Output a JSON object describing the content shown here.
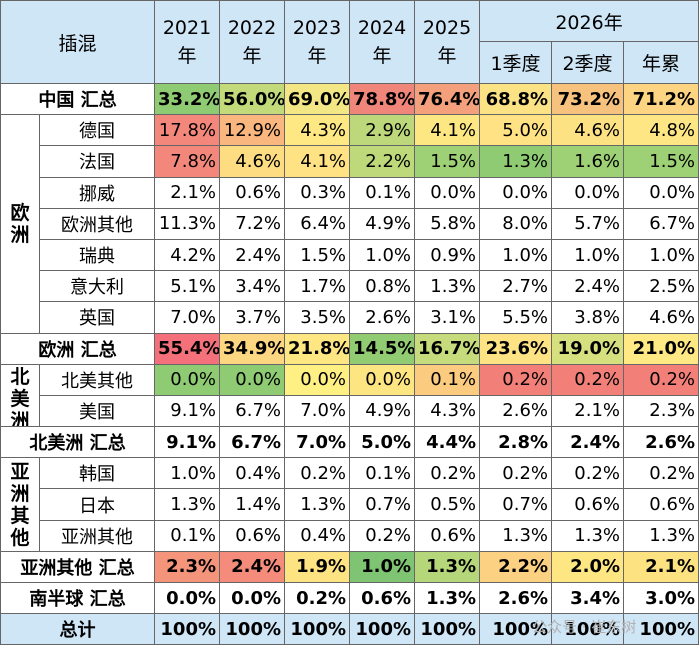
{
  "header": {
    "corner": "插混",
    "years": [
      "2021\n年",
      "2022\n年",
      "2023\n年",
      "2024\n年",
      "2025\n年"
    ],
    "group": "2026年",
    "sub": [
      "1季度",
      "2季度",
      "年累"
    ]
  },
  "rows": [
    {
      "kind": "sum",
      "label": "中国 汇总",
      "values": [
        "33.2%",
        "56.0%",
        "69.0%",
        "78.8%",
        "76.4%",
        "68.8%",
        "73.2%",
        "71.2%"
      ],
      "colors": [
        "#8fcb72",
        "#c2da7a",
        "#f3e785",
        "#f0857a",
        "#f4a07c",
        "#fbe285",
        "#f7c27e",
        "#fdd481"
      ]
    },
    {
      "kind": "item",
      "region": "欧洲",
      "regionSpan": 7,
      "label": "德国",
      "values": [
        "17.8%",
        "12.9%",
        "4.3%",
        "2.9%",
        "4.1%",
        "5.0%",
        "4.6%",
        "4.8%"
      ],
      "colors": [
        "#f4877b",
        "#f9b67e",
        "#fde883",
        "#bcd87a",
        "#fce783",
        "#fee284",
        "#fde283",
        "#fde683"
      ]
    },
    {
      "kind": "item",
      "label": "法国",
      "values": [
        "7.8%",
        "4.6%",
        "4.1%",
        "2.2%",
        "1.5%",
        "1.3%",
        "1.6%",
        "1.5%"
      ],
      "colors": [
        "#f4877b",
        "#fedc82",
        "#fee283",
        "#bed97a",
        "#9ed075",
        "#8ecb72",
        "#9ed075",
        "#9ed075"
      ]
    },
    {
      "kind": "item",
      "label": "挪威",
      "values": [
        "2.1%",
        "0.6%",
        "0.3%",
        "0.1%",
        "0.0%",
        "0.0%",
        "0.0%",
        "0.0%"
      ],
      "colors": []
    },
    {
      "kind": "item",
      "label": "欧洲其他",
      "values": [
        "11.3%",
        "7.2%",
        "6.4%",
        "4.9%",
        "5.8%",
        "8.0%",
        "5.7%",
        "6.7%"
      ],
      "colors": []
    },
    {
      "kind": "item",
      "label": "瑞典",
      "values": [
        "4.2%",
        "2.4%",
        "1.5%",
        "1.0%",
        "0.9%",
        "1.0%",
        "1.0%",
        "1.0%"
      ],
      "colors": []
    },
    {
      "kind": "item",
      "label": "意大利",
      "values": [
        "5.1%",
        "3.4%",
        "1.7%",
        "0.8%",
        "1.3%",
        "2.7%",
        "2.4%",
        "2.5%"
      ],
      "colors": []
    },
    {
      "kind": "item",
      "label": "英国",
      "values": [
        "7.0%",
        "3.7%",
        "3.5%",
        "2.6%",
        "3.1%",
        "5.5%",
        "3.8%",
        "4.6%"
      ],
      "colors": []
    },
    {
      "kind": "sum",
      "label": "欧洲 汇总",
      "values": [
        "55.4%",
        "34.9%",
        "21.8%",
        "14.5%",
        "16.7%",
        "23.6%",
        "19.0%",
        "21.0%"
      ],
      "colors": [
        "#f4707a",
        "#fdd681",
        "#fee683",
        "#91cc73",
        "#c6db7b",
        "#fde383",
        "#d7e07e",
        "#ffe984"
      ]
    },
    {
      "kind": "item",
      "region": "北美洲",
      "regionSpan": 2,
      "label": "北美其他",
      "values": [
        "0.0%",
        "0.0%",
        "0.0%",
        "0.0%",
        "0.1%",
        "0.2%",
        "0.2%",
        "0.2%"
      ],
      "colors": [
        "#8fcb72",
        "#8fcb72",
        "#fff084",
        "#fde682",
        "#fbcb7f",
        "#f28079",
        "#f28079",
        "#f28079"
      ]
    },
    {
      "kind": "item",
      "label": "美国",
      "values": [
        "9.1%",
        "6.7%",
        "7.0%",
        "4.9%",
        "4.3%",
        "2.6%",
        "2.1%",
        "2.3%"
      ],
      "colors": []
    },
    {
      "kind": "sum",
      "label": "北美洲 汇总",
      "values": [
        "9.1%",
        "6.7%",
        "7.0%",
        "5.0%",
        "4.4%",
        "2.8%",
        "2.4%",
        "2.6%"
      ],
      "colors": []
    },
    {
      "kind": "item",
      "region": "亚洲其他",
      "regionSpan": 3,
      "label": "韩国",
      "values": [
        "1.0%",
        "0.4%",
        "0.2%",
        "0.1%",
        "0.2%",
        "0.2%",
        "0.2%",
        "0.2%"
      ],
      "colors": []
    },
    {
      "kind": "item",
      "label": "日本",
      "values": [
        "1.3%",
        "1.4%",
        "1.3%",
        "0.7%",
        "0.5%",
        "0.7%",
        "0.6%",
        "0.6%"
      ],
      "colors": []
    },
    {
      "kind": "item",
      "label": "亚洲其他",
      "values": [
        "0.1%",
        "0.6%",
        "0.4%",
        "0.2%",
        "0.6%",
        "1.3%",
        "1.3%",
        "1.3%"
      ],
      "colors": []
    },
    {
      "kind": "sum",
      "label": "亚洲其他 汇总",
      "values": [
        "2.3%",
        "2.4%",
        "1.9%",
        "1.0%",
        "1.3%",
        "2.2%",
        "2.0%",
        "2.1%"
      ],
      "colors": [
        "#f4957b",
        "#f58b7b",
        "#fee383",
        "#7fc472",
        "#b6d67a",
        "#fcd181",
        "#fee683",
        "#fce281"
      ]
    },
    {
      "kind": "sum",
      "label": "南半球 汇总",
      "values": [
        "0.0%",
        "0.0%",
        "0.2%",
        "0.6%",
        "1.3%",
        "2.6%",
        "3.4%",
        "3.0%"
      ],
      "colors": []
    },
    {
      "kind": "total",
      "label": "总计",
      "values": [
        "100%",
        "100%",
        "100%",
        "100%",
        "100%",
        "100%",
        "100%",
        "100%"
      ],
      "colors": []
    }
  ],
  "watermark": "公众号 · 崔东树"
}
